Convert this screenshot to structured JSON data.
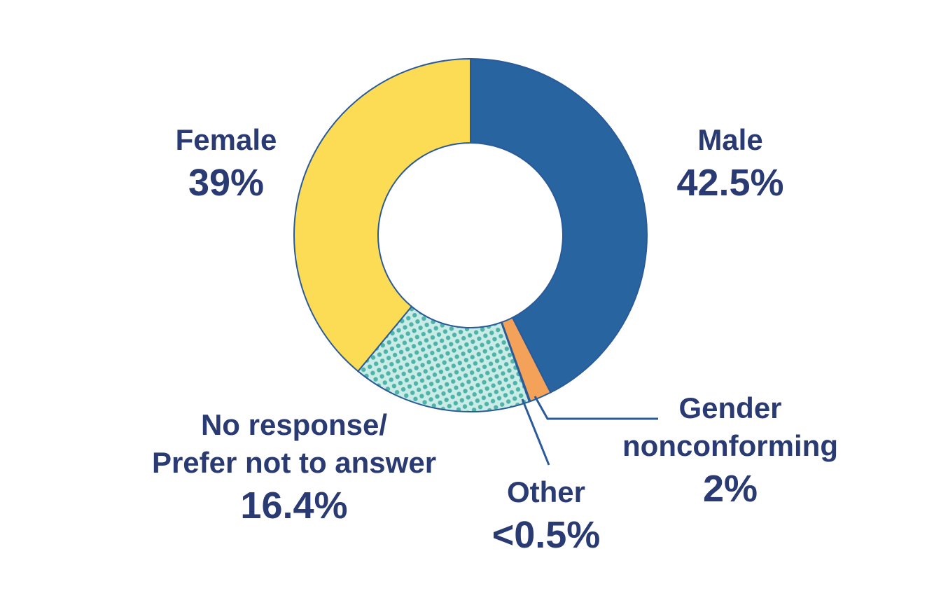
{
  "chart_data": {
    "type": "donut",
    "categories": [
      "Male",
      "Gender\nnonconforming",
      "Other",
      "No response/\nPrefer not to answer",
      "Female"
    ],
    "values": [
      42.5,
      2,
      0.1,
      16.4,
      39
    ],
    "value_labels": [
      "42.5%",
      "2%",
      "<0.5%",
      "16.4%",
      "39%"
    ],
    "colors": [
      "#2864a0",
      "#f4a259",
      "#2a3f7a",
      "url(#dots)",
      "#fddc55"
    ]
  }
}
